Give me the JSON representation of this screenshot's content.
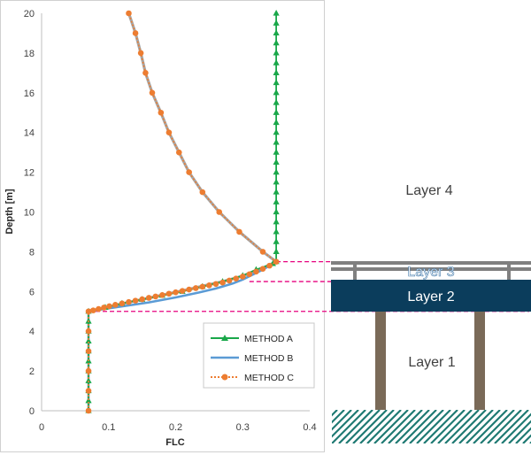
{
  "chart_data": {
    "type": "line",
    "xlabel": "FLC",
    "ylabel": "Depth [m]",
    "xlim": [
      0,
      0.4
    ],
    "ylim": [
      0,
      20
    ],
    "xticks": [
      "0",
      "0.1",
      "0.2",
      "0.3",
      "0.4"
    ],
    "yticks": [
      "0",
      "2",
      "4",
      "6",
      "8",
      "10",
      "12",
      "14",
      "16",
      "18",
      "20"
    ],
    "legend_position": "bottom-right",
    "grid": false,
    "series": [
      {
        "name": "METHOD A",
        "color": "#1aa84a",
        "marker": "triangle",
        "line": "solid",
        "points": [
          [
            0.07,
            0
          ],
          [
            0.07,
            0.5
          ],
          [
            0.07,
            1
          ],
          [
            0.07,
            1.5
          ],
          [
            0.07,
            2
          ],
          [
            0.07,
            2.5
          ],
          [
            0.07,
            3
          ],
          [
            0.07,
            3.5
          ],
          [
            0.07,
            4
          ],
          [
            0.07,
            4.5
          ],
          [
            0.07,
            5
          ],
          [
            0.095,
            5.2
          ],
          [
            0.12,
            5.4
          ],
          [
            0.15,
            5.6
          ],
          [
            0.18,
            5.8
          ],
          [
            0.21,
            6
          ],
          [
            0.24,
            6.25
          ],
          [
            0.27,
            6.5
          ],
          [
            0.3,
            6.8
          ],
          [
            0.32,
            7.1
          ],
          [
            0.345,
            7.4
          ],
          [
            0.35,
            7.5
          ],
          [
            0.35,
            8
          ],
          [
            0.35,
            8.5
          ],
          [
            0.35,
            9
          ],
          [
            0.35,
            9.5
          ],
          [
            0.35,
            10
          ],
          [
            0.35,
            10.5
          ],
          [
            0.35,
            11
          ],
          [
            0.35,
            11.5
          ],
          [
            0.35,
            12
          ],
          [
            0.35,
            12.5
          ],
          [
            0.35,
            13
          ],
          [
            0.35,
            13.5
          ],
          [
            0.35,
            14
          ],
          [
            0.35,
            14.5
          ],
          [
            0.35,
            15
          ],
          [
            0.35,
            15.5
          ],
          [
            0.35,
            16
          ],
          [
            0.35,
            16.5
          ],
          [
            0.35,
            17
          ],
          [
            0.35,
            17.5
          ],
          [
            0.35,
            18
          ],
          [
            0.35,
            18.5
          ],
          [
            0.35,
            19
          ],
          [
            0.35,
            19.5
          ],
          [
            0.35,
            20
          ]
        ]
      },
      {
        "name": "METHOD B",
        "color": "#5b9bd5",
        "marker": "none",
        "line": "solid",
        "points": [
          [
            0.07,
            0
          ],
          [
            0.07,
            5
          ],
          [
            0.09,
            5.1
          ],
          [
            0.12,
            5.25
          ],
          [
            0.16,
            5.45
          ],
          [
            0.2,
            5.7
          ],
          [
            0.235,
            5.95
          ],
          [
            0.26,
            6.15
          ],
          [
            0.285,
            6.4
          ],
          [
            0.3,
            6.6
          ],
          [
            0.315,
            6.85
          ],
          [
            0.33,
            7.1
          ],
          [
            0.345,
            7.4
          ],
          [
            0.35,
            7.5
          ]
        ]
      },
      {
        "name": "METHOD C",
        "color": "#ed7d31",
        "marker": "circle",
        "line": "dotted",
        "points": [
          [
            0.07,
            0
          ],
          [
            0.07,
            1
          ],
          [
            0.07,
            2
          ],
          [
            0.07,
            3
          ],
          [
            0.07,
            4
          ],
          [
            0.07,
            5
          ],
          [
            0.077,
            5.05
          ],
          [
            0.085,
            5.12
          ],
          [
            0.093,
            5.19
          ],
          [
            0.101,
            5.26
          ],
          [
            0.11,
            5.33
          ],
          [
            0.12,
            5.4
          ],
          [
            0.13,
            5.47
          ],
          [
            0.14,
            5.54
          ],
          [
            0.15,
            5.61
          ],
          [
            0.16,
            5.68
          ],
          [
            0.17,
            5.75
          ],
          [
            0.18,
            5.82
          ],
          [
            0.19,
            5.89
          ],
          [
            0.2,
            5.96
          ],
          [
            0.21,
            6.03
          ],
          [
            0.22,
            6.1
          ],
          [
            0.23,
            6.17
          ],
          [
            0.24,
            6.24
          ],
          [
            0.25,
            6.31
          ],
          [
            0.26,
            6.38
          ],
          [
            0.27,
            6.45
          ],
          [
            0.28,
            6.55
          ],
          [
            0.29,
            6.65
          ],
          [
            0.3,
            6.75
          ],
          [
            0.31,
            6.87
          ],
          [
            0.32,
            7
          ],
          [
            0.33,
            7.14
          ],
          [
            0.34,
            7.3
          ],
          [
            0.35,
            7.5
          ],
          [
            0.33,
            8
          ],
          [
            0.295,
            9
          ],
          [
            0.265,
            10
          ],
          [
            0.24,
            11
          ],
          [
            0.22,
            12
          ],
          [
            0.205,
            13
          ],
          [
            0.19,
            14
          ],
          [
            0.178,
            15
          ],
          [
            0.165,
            16
          ],
          [
            0.155,
            17
          ],
          [
            0.148,
            18
          ],
          [
            0.14,
            19
          ],
          [
            0.13,
            20
          ]
        ]
      }
    ],
    "gray_curve": {
      "color": "#a6a6a6",
      "points": [
        [
          0.07,
          5
        ],
        [
          0.09,
          5.15
        ],
        [
          0.12,
          5.38
        ],
        [
          0.15,
          5.6
        ],
        [
          0.18,
          5.82
        ],
        [
          0.21,
          6.04
        ],
        [
          0.24,
          6.27
        ],
        [
          0.27,
          6.5
        ],
        [
          0.3,
          6.78
        ],
        [
          0.325,
          7.1
        ],
        [
          0.35,
          7.5
        ],
        [
          0.33,
          8
        ],
        [
          0.295,
          9
        ],
        [
          0.265,
          10
        ],
        [
          0.24,
          11
        ],
        [
          0.22,
          12
        ],
        [
          0.205,
          13
        ],
        [
          0.19,
          14
        ],
        [
          0.178,
          15
        ],
        [
          0.165,
          16
        ],
        [
          0.155,
          17
        ],
        [
          0.148,
          18
        ],
        [
          0.14,
          19
        ],
        [
          0.13,
          20
        ]
      ]
    },
    "reference_lines": {
      "color": "#e6007e",
      "depths": [
        7.5,
        6.5,
        5
      ]
    }
  },
  "layers": {
    "layer4": "Layer 4",
    "layer3": "Layer 3",
    "layer2": "Layer 2",
    "layer1": "Layer 1",
    "colors": {
      "layer2_fill": "#0b3d5c",
      "beam": "#808080",
      "pile": "#7a6a58",
      "hatch": "#1f7a73"
    }
  }
}
